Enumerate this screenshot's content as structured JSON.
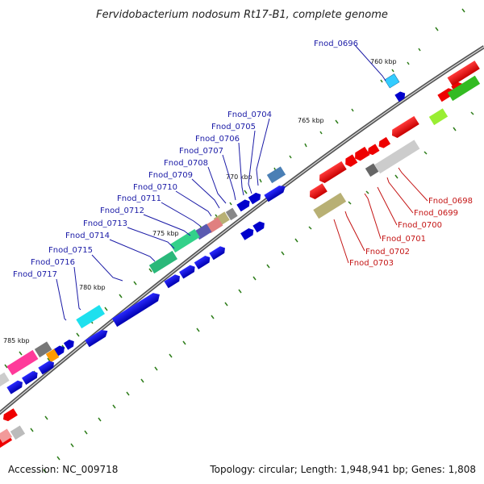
{
  "title": "Fervidobacterium nodosum Rt17-B1, complete genome",
  "footer": {
    "accession": "Accession: NC_009718",
    "info": "Topology: circular; Length: 1,948,941 bp; Genes: 1,808"
  },
  "ruler": [
    "760 kbp",
    "765 kbp",
    "770 kbp",
    "775 kbp",
    "780 kbp",
    "785 kbp"
  ],
  "labels_blue": [
    "Fnod_0696",
    "Fnod_0704",
    "Fnod_0705",
    "Fnod_0706",
    "Fnod_0707",
    "Fnod_0708",
    "Fnod_0709",
    "Fnod_0710",
    "Fnod_0711",
    "Fnod_0712",
    "Fnod_0713",
    "Fnod_0714",
    "Fnod_0715",
    "Fnod_0716",
    "Fnod_0717"
  ],
  "labels_red": [
    "Fnod_0698",
    "Fnod_0699",
    "Fnod_0700",
    "Fnod_0701",
    "Fnod_0702",
    "Fnod_0703"
  ],
  "colors": {
    "forward_gene": "#0000cc",
    "reverse_gene": "#ee0000",
    "backbone": "#555555",
    "tick": "#2e7d1a",
    "label_blue": "#1a1aa6",
    "label_red": "#c41414"
  }
}
